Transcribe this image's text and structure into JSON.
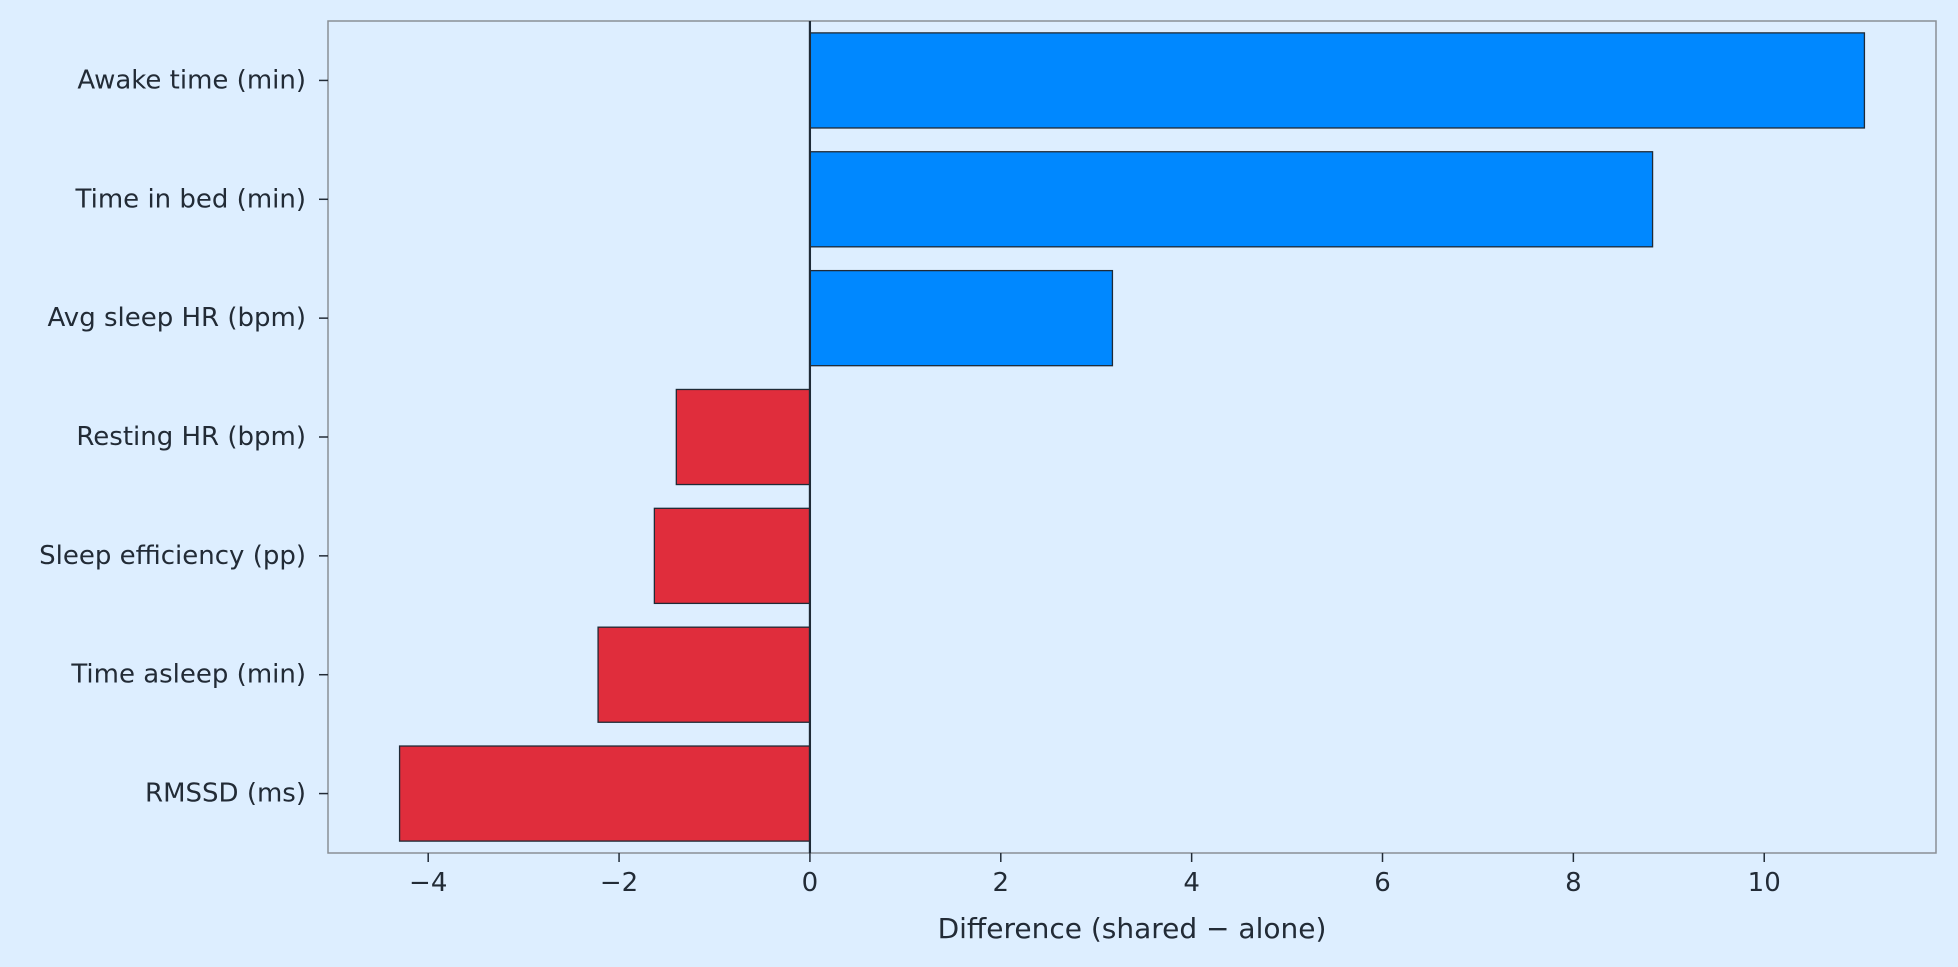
{
  "colors": {
    "background": "#ddeeff",
    "positive": "#0088ff",
    "negative": "#e02d3c",
    "bar_edge": "#1f2a36",
    "text": "#222b36",
    "frame": "#8a8f95"
  },
  "chart_data": {
    "type": "bar",
    "orientation": "horizontal",
    "title": "",
    "xlabel": "Difference (shared − alone)",
    "ylabel": "",
    "categories": [
      "Awake time (min)",
      "Time in bed (min)",
      "Avg sleep HR (bpm)",
      "Resting HR (bpm)",
      "Sleep efficiency (pp)",
      "Time asleep (min)",
      "RMSSD (ms)"
    ],
    "values": [
      11.05,
      8.83,
      3.17,
      -1.4,
      -1.63,
      -2.22,
      -4.3
    ],
    "xlim": [
      -5.05,
      11.8
    ],
    "xticks": [
      -4,
      -2,
      0,
      2,
      4,
      6,
      8,
      10
    ],
    "xtick_labels": [
      "−4",
      "−2",
      "0",
      "2",
      "4",
      "6",
      "8",
      "10"
    ],
    "zero_line": true,
    "grid": false,
    "legend": "none"
  }
}
